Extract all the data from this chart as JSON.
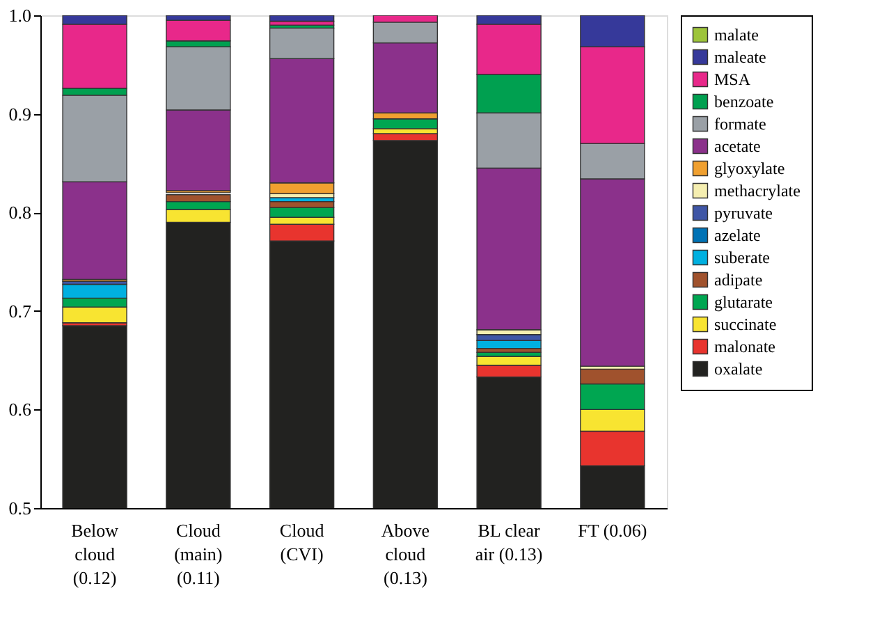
{
  "chart_data": {
    "type": "bar",
    "categories": [
      "Below cloud (0.12)",
      "Cloud (main) (0.11)",
      "Cloud (CVI)",
      "Above cloud (0.13)",
      "BL clear air (0.13)",
      "FT (0.06)"
    ],
    "series": [
      {
        "name": "oxalate",
        "color": "#222220",
        "values": [
          0.685,
          0.79,
          0.771,
          0.873,
          0.633,
          0.543
        ],
        "base": [
          0,
          0,
          0,
          0,
          0,
          0
        ]
      },
      {
        "name": "malonate",
        "color": "#e8342e",
        "values": [
          0.003,
          null,
          0.017,
          0.007,
          0.012,
          0.035
        ],
        "base": [
          0.685,
          null,
          0.771,
          0.873,
          0.633,
          0.543
        ]
      },
      {
        "name": "succinate",
        "color": "#f8e431",
        "values": [
          0.016,
          0.013,
          0.007,
          0.005,
          0.009,
          0.022
        ],
        "base": [
          0.688,
          0.79,
          0.788,
          0.88,
          0.645,
          0.578
        ]
      },
      {
        "name": "glutarate",
        "color": "#00a651",
        "values": [
          0.009,
          0.008,
          0.01,
          0.01,
          0.004,
          0.026
        ],
        "base": [
          0.704,
          0.803,
          0.795,
          0.885,
          0.654,
          0.6
        ]
      },
      {
        "name": "adipate",
        "color": "#a0522d",
        "values": [
          null,
          0.007,
          0.006,
          null,
          0.004,
          0.015
        ],
        "base": [
          null,
          0.811,
          0.805,
          null,
          0.658,
          0.626
        ]
      },
      {
        "name": "suberate",
        "color": "#00b0e0",
        "values": [
          0.014,
          null,
          0.004,
          null,
          0.008,
          null
        ],
        "base": [
          0.713,
          null,
          0.811,
          null,
          0.662,
          null
        ]
      },
      {
        "name": "azelate",
        "color": "#0072b5",
        "values": [
          null,
          null,
          null,
          null,
          null,
          null
        ],
        "base": [
          null,
          null,
          null,
          null,
          null,
          null
        ]
      },
      {
        "name": "pyruvate",
        "color": "#3f56a6",
        "values": [
          0.003,
          null,
          null,
          null,
          0.006,
          null
        ],
        "base": [
          0.727,
          null,
          null,
          null,
          0.67,
          null
        ]
      },
      {
        "name": "methacrylate",
        "color": "#f5eeb0",
        "values": [
          null,
          null,
          0.004,
          null,
          0.005,
          0.003
        ],
        "base": [
          null,
          null,
          0.815,
          null,
          0.676,
          0.641
        ]
      },
      {
        "name": "glyoxylate",
        "color": "#f0a030",
        "values": [
          0.002,
          0.002,
          0.011,
          0.006,
          null,
          null
        ],
        "base": [
          0.73,
          0.82,
          0.819,
          0.895,
          null,
          null
        ]
      },
      {
        "name": "acetate",
        "color": "#8b318b",
        "values": [
          0.099,
          0.082,
          0.126,
          0.071,
          0.164,
          0.19
        ],
        "base": [
          0.732,
          0.822,
          0.83,
          0.901,
          0.681,
          0.644
        ]
      },
      {
        "name": "formate",
        "color": "#9aa0a6",
        "values": [
          0.088,
          0.064,
          0.031,
          0.021,
          0.056,
          0.036
        ],
        "base": [
          0.831,
          0.904,
          0.956,
          0.972,
          0.845,
          0.834
        ]
      },
      {
        "name": "benzoate",
        "color": "#00a050",
        "values": [
          0.007,
          0.006,
          0.003,
          null,
          0.039,
          null
        ],
        "base": [
          0.919,
          0.968,
          0.987,
          null,
          0.901,
          null
        ]
      },
      {
        "name": "MSA",
        "color": "#e8288a",
        "values": [
          0.065,
          0.021,
          0.004,
          0.007,
          0.051,
          0.098
        ],
        "base": [
          0.926,
          0.974,
          0.99,
          0.993,
          0.94,
          0.87
        ]
      },
      {
        "name": "maleate",
        "color": "#36399a",
        "values": [
          0.009,
          0.005,
          0.006,
          null,
          0.009,
          0.032
        ],
        "base": [
          0.991,
          0.995,
          0.994,
          null,
          0.991,
          0.968
        ]
      },
      {
        "name": "malate",
        "color": "#9dc43a",
        "values": [
          null,
          null,
          null,
          null,
          null,
          null
        ],
        "base": [
          null,
          null,
          null,
          null,
          null,
          null
        ]
      }
    ],
    "ylim": [
      0.5,
      1.0
    ],
    "yticks": [
      {
        "value": 0.5,
        "label": "0.5"
      },
      {
        "value": 0.6,
        "label": "0.6"
      },
      {
        "value": 0.7,
        "label": "0.7"
      },
      {
        "value": 0.8,
        "label": "0.8"
      },
      {
        "value": 0.9,
        "label": "0.9"
      },
      {
        "value": 1.0,
        "label": "1.0"
      }
    ],
    "grid": false,
    "legend": "right"
  }
}
